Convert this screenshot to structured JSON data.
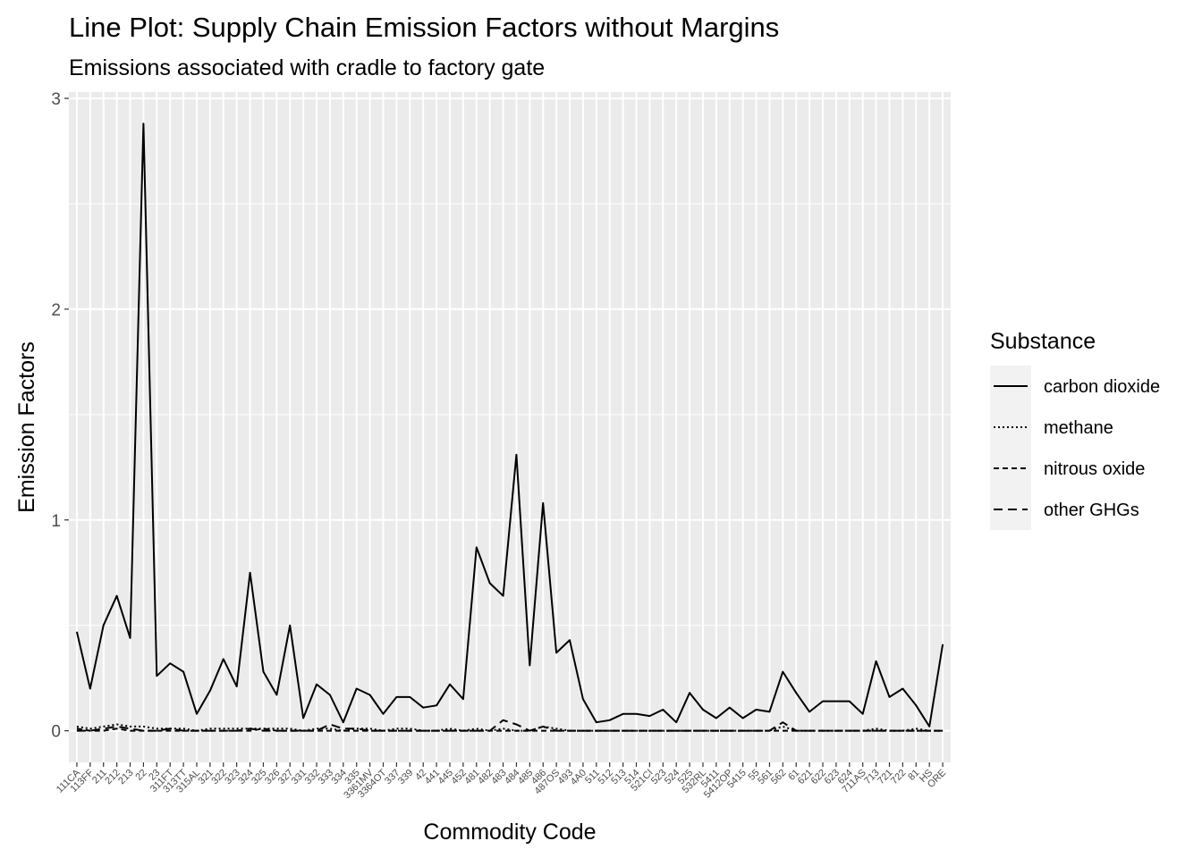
{
  "chart_data": {
    "type": "line",
    "title": "Line Plot: Supply Chain Emission Factors without Margins",
    "subtitle": "Emissions associated with cradle to factory gate",
    "xlabel": "Commodity Code",
    "ylabel": "Emission Factors",
    "ylim": [
      -0.15,
      3.03
    ],
    "yticks": [
      0,
      1,
      2,
      3
    ],
    "grid": true,
    "legend": {
      "title": "Substance",
      "placement": "right"
    },
    "categories": [
      "111CA",
      "113FF",
      "211",
      "212",
      "213",
      "22",
      "23",
      "311FT",
      "313TT",
      "315AL",
      "321",
      "322",
      "323",
      "324",
      "325",
      "326",
      "327",
      "331",
      "332",
      "333",
      "334",
      "335",
      "3361MV",
      "3364OT",
      "337",
      "339",
      "42",
      "441",
      "445",
      "452",
      "481",
      "482",
      "483",
      "484",
      "485",
      "486",
      "487OS",
      "493",
      "4A0",
      "511",
      "512",
      "513",
      "514",
      "521CI",
      "523",
      "524",
      "525",
      "532RL",
      "5411",
      "5412OP",
      "5415",
      "55",
      "561",
      "562",
      "61",
      "621",
      "622",
      "623",
      "624",
      "711AS",
      "713",
      "721",
      "722",
      "81",
      "HS",
      "ORE"
    ],
    "series": [
      {
        "name": "carbon dioxide",
        "dash": "solid",
        "values": [
          0.47,
          0.2,
          0.5,
          0.64,
          0.44,
          2.88,
          0.26,
          0.32,
          0.28,
          0.08,
          0.19,
          0.34,
          0.21,
          0.75,
          0.28,
          0.17,
          0.5,
          0.06,
          0.22,
          0.17,
          0.04,
          0.2,
          0.17,
          0.08,
          0.16,
          0.16,
          0.11,
          0.12,
          0.22,
          0.15,
          0.87,
          0.7,
          0.64,
          1.31,
          0.31,
          1.08,
          0.37,
          0.43,
          0.15,
          0.04,
          0.05,
          0.08,
          0.08,
          0.07,
          0.1,
          0.04,
          0.18,
          0.1,
          0.06,
          0.11,
          0.06,
          0.1,
          0.09,
          0.28,
          0.18,
          0.09,
          0.14,
          0.14,
          0.14,
          0.08,
          0.33,
          0.16,
          0.2,
          0.12,
          0.02,
          0.41
        ]
      },
      {
        "name": "methane",
        "dash": "dotted",
        "values": [
          0.02,
          0.01,
          0.02,
          0.03,
          0.02,
          0.02,
          0.01,
          0.01,
          0.01,
          0.0,
          0.01,
          0.01,
          0.01,
          0.01,
          0.01,
          0.01,
          0.01,
          0.0,
          0.01,
          0.01,
          0.0,
          0.01,
          0.01,
          0.0,
          0.01,
          0.01,
          0.0,
          0.0,
          0.01,
          0.0,
          0.01,
          0.0,
          0.01,
          0.0,
          0.0,
          0.02,
          0.01,
          0.0,
          0.0,
          0.0,
          0.0,
          0.0,
          0.0,
          0.0,
          0.0,
          0.0,
          0.0,
          0.0,
          0.0,
          0.0,
          0.0,
          0.0,
          0.0,
          0.02,
          0.0,
          0.0,
          0.0,
          0.0,
          0.0,
          0.0,
          0.01,
          0.0,
          0.0,
          0.01,
          0.0,
          0.0
        ]
      },
      {
        "name": "nitrous oxide",
        "dash": "dashed",
        "values": [
          0.01,
          0.0,
          0.0,
          0.01,
          0.0,
          0.0,
          0.0,
          0.0,
          0.0,
          0.0,
          0.0,
          0.0,
          0.0,
          0.0,
          0.01,
          0.0,
          0.0,
          0.0,
          0.0,
          0.0,
          0.0,
          0.0,
          0.0,
          0.0,
          0.0,
          0.0,
          0.0,
          0.0,
          0.0,
          0.0,
          0.0,
          0.0,
          0.0,
          0.0,
          0.0,
          0.0,
          0.0,
          0.0,
          0.0,
          0.0,
          0.0,
          0.0,
          0.0,
          0.0,
          0.0,
          0.0,
          0.0,
          0.0,
          0.0,
          0.0,
          0.0,
          0.0,
          0.0,
          0.0,
          0.0,
          0.0,
          0.0,
          0.0,
          0.0,
          0.0,
          0.0,
          0.0,
          0.0,
          0.0,
          0.0,
          0.0
        ]
      },
      {
        "name": "other GHGs",
        "dash": "longdash",
        "values": [
          0.0,
          0.0,
          0.01,
          0.02,
          0.01,
          0.0,
          0.0,
          0.01,
          0.0,
          0.0,
          0.0,
          0.0,
          0.0,
          0.01,
          0.0,
          0.0,
          0.0,
          0.0,
          0.0,
          0.03,
          0.01,
          0.01,
          0.0,
          0.0,
          0.0,
          0.0,
          0.0,
          0.0,
          0.0,
          0.0,
          0.0,
          0.0,
          0.05,
          0.03,
          0.0,
          0.02,
          0.0,
          0.0,
          0.0,
          0.0,
          0.0,
          0.0,
          0.0,
          0.0,
          0.0,
          0.0,
          0.0,
          0.0,
          0.0,
          0.0,
          0.0,
          0.0,
          0.0,
          0.04,
          0.0,
          0.0,
          0.0,
          0.0,
          0.0,
          0.0,
          0.0,
          0.0,
          0.0,
          0.0,
          0.0,
          0.0
        ]
      }
    ]
  }
}
